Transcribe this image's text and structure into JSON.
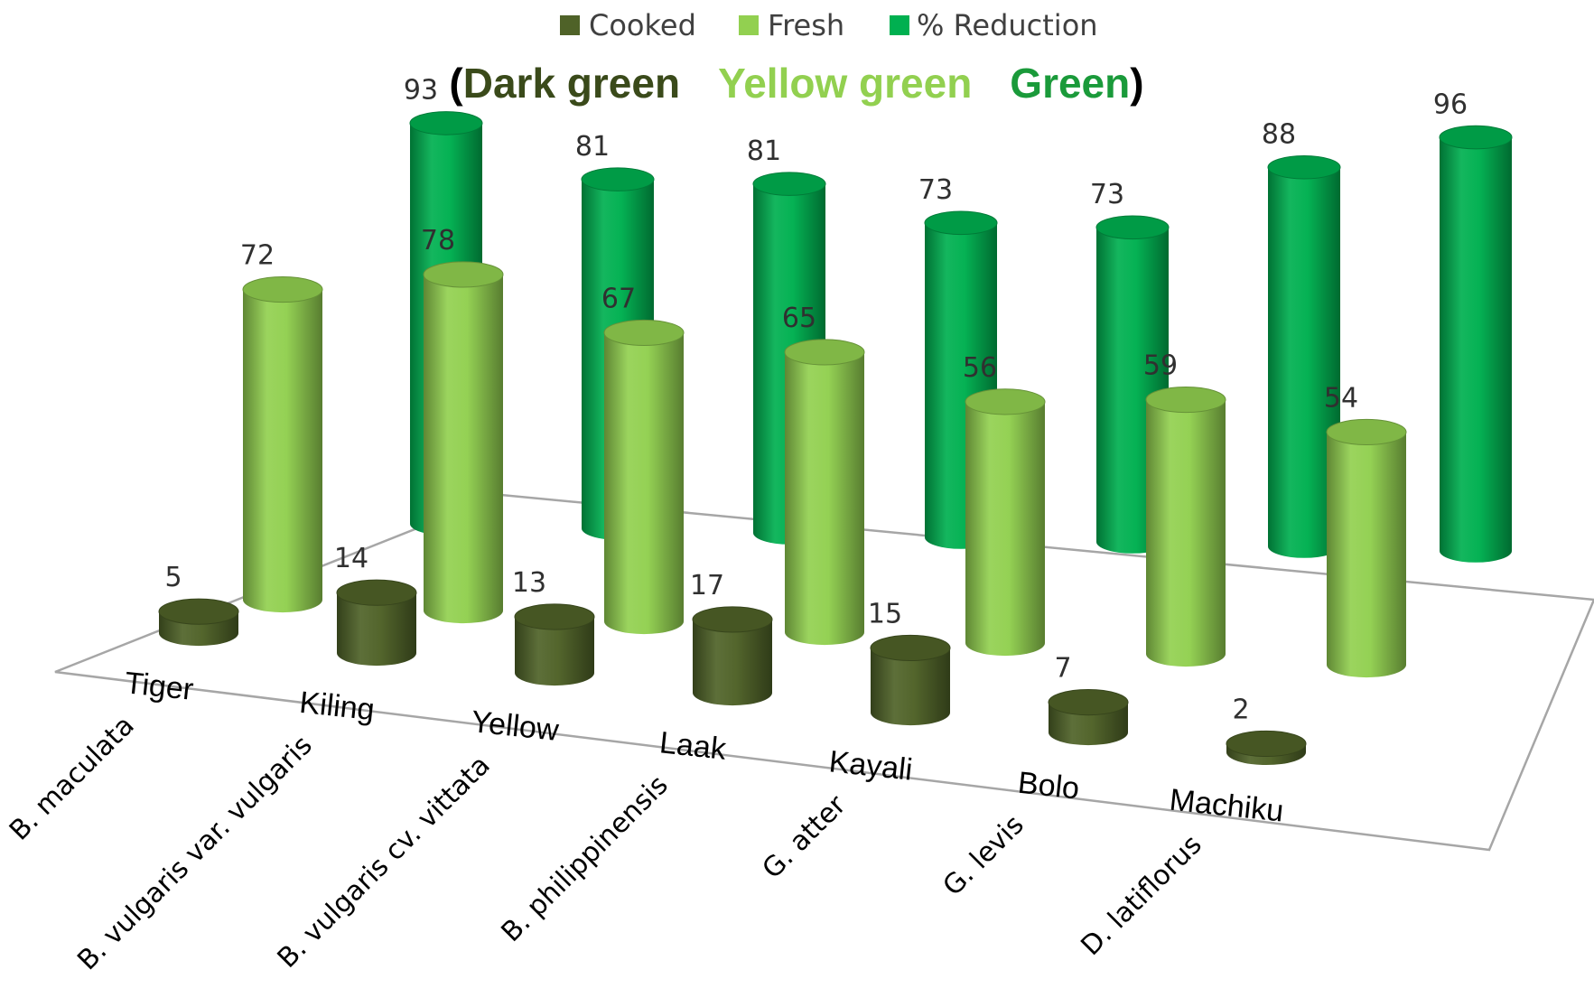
{
  "chart_data": {
    "type": "bar",
    "style": "3d-cylinder",
    "categories": [
      "Tiger",
      "Kiling",
      "Yellow",
      "Laak",
      "Kayali",
      "Bolo",
      "Machiku"
    ],
    "species": [
      "B. maculata",
      "B. vulgaris var. vulgaris",
      "B. vulgaris cv. vittata",
      "B. philippinensis",
      "G. atter",
      "G. levis",
      "D. latiflorus"
    ],
    "series": [
      {
        "name": "Cooked",
        "color": "#4f6228",
        "values": [
          5,
          14,
          13,
          17,
          15,
          7,
          2
        ]
      },
      {
        "name": "Fresh",
        "color": "#92d050",
        "values": [
          72,
          78,
          67,
          65,
          56,
          59,
          54
        ]
      },
      {
        "name": "% Reduction",
        "color": "#00b050",
        "values": [
          93,
          81,
          81,
          73,
          73,
          88,
          96
        ]
      }
    ],
    "legend_position": "top",
    "subtitle": {
      "open": "(",
      "parts": [
        {
          "text": "Dark green",
          "color": "#3a4a1a"
        },
        {
          "text": "Yellow green",
          "color": "#92d050"
        },
        {
          "text": "Green",
          "color": "#1a9a3a"
        }
      ],
      "close": ")"
    },
    "grid": false
  }
}
